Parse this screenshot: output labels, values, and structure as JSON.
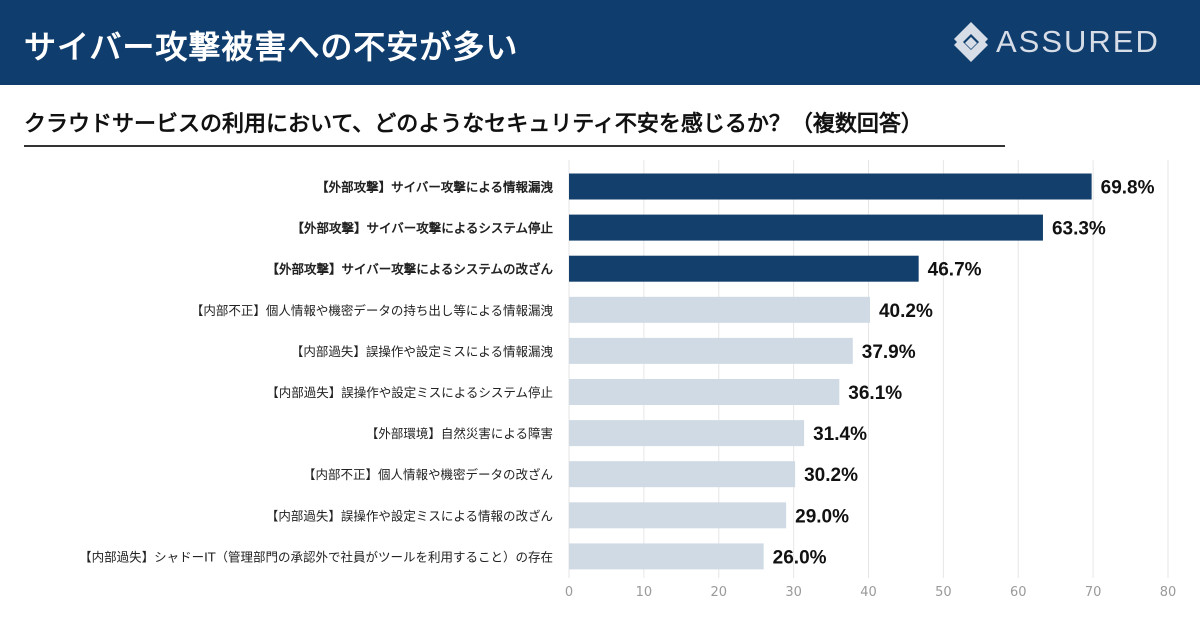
{
  "header": {
    "title": "サイバー攻撃被害への不安が多い",
    "logo_text": "ASSURED"
  },
  "colors": {
    "header_bg": "#0f3d6e",
    "highlight_bar": "#133f6c",
    "normal_bar": "#cfdae5",
    "grid": "#e6e6e6"
  },
  "chart_data": {
    "type": "bar",
    "orientation": "horizontal",
    "title": "クラウドサービスの利用において、どのようなセキュリティ不安を感じるか？（複数回答）",
    "categories": [
      "【外部攻撃】サイバー攻撃による情報漏洩",
      "【外部攻撃】サイバー攻撃によるシステム停止",
      "【外部攻撃】サイバー攻撃によるシステムの改ざん",
      "【内部不正】個人情報や機密データの持ち出し等による情報漏洩",
      "【内部過失】誤操作や設定ミスによる情報漏洩",
      "【内部過失】誤操作や設定ミスによるシステム停止",
      "【外部環境】自然災害による障害",
      "【内部不正】個人情報や機密データの改ざん",
      "【内部過失】誤操作や設定ミスによる情報の改ざん",
      "【内部過失】シャドーIT（管理部門の承認外で社員がツールを利用すること）の存在"
    ],
    "values": [
      69.8,
      63.3,
      46.7,
      40.2,
      37.9,
      36.1,
      31.4,
      30.2,
      29.0,
      26.0
    ],
    "value_labels": [
      "69.8%",
      "63.3%",
      "46.7%",
      "40.2%",
      "37.9%",
      "36.1%",
      "31.4%",
      "30.2%",
      "29.0%",
      "26.0%"
    ],
    "highlighted": [
      true,
      true,
      true,
      false,
      false,
      false,
      false,
      false,
      false,
      false
    ],
    "xlim": [
      0,
      80
    ],
    "xticks": [
      0,
      10,
      20,
      30,
      40,
      50,
      60,
      70,
      80
    ],
    "grid": true
  }
}
